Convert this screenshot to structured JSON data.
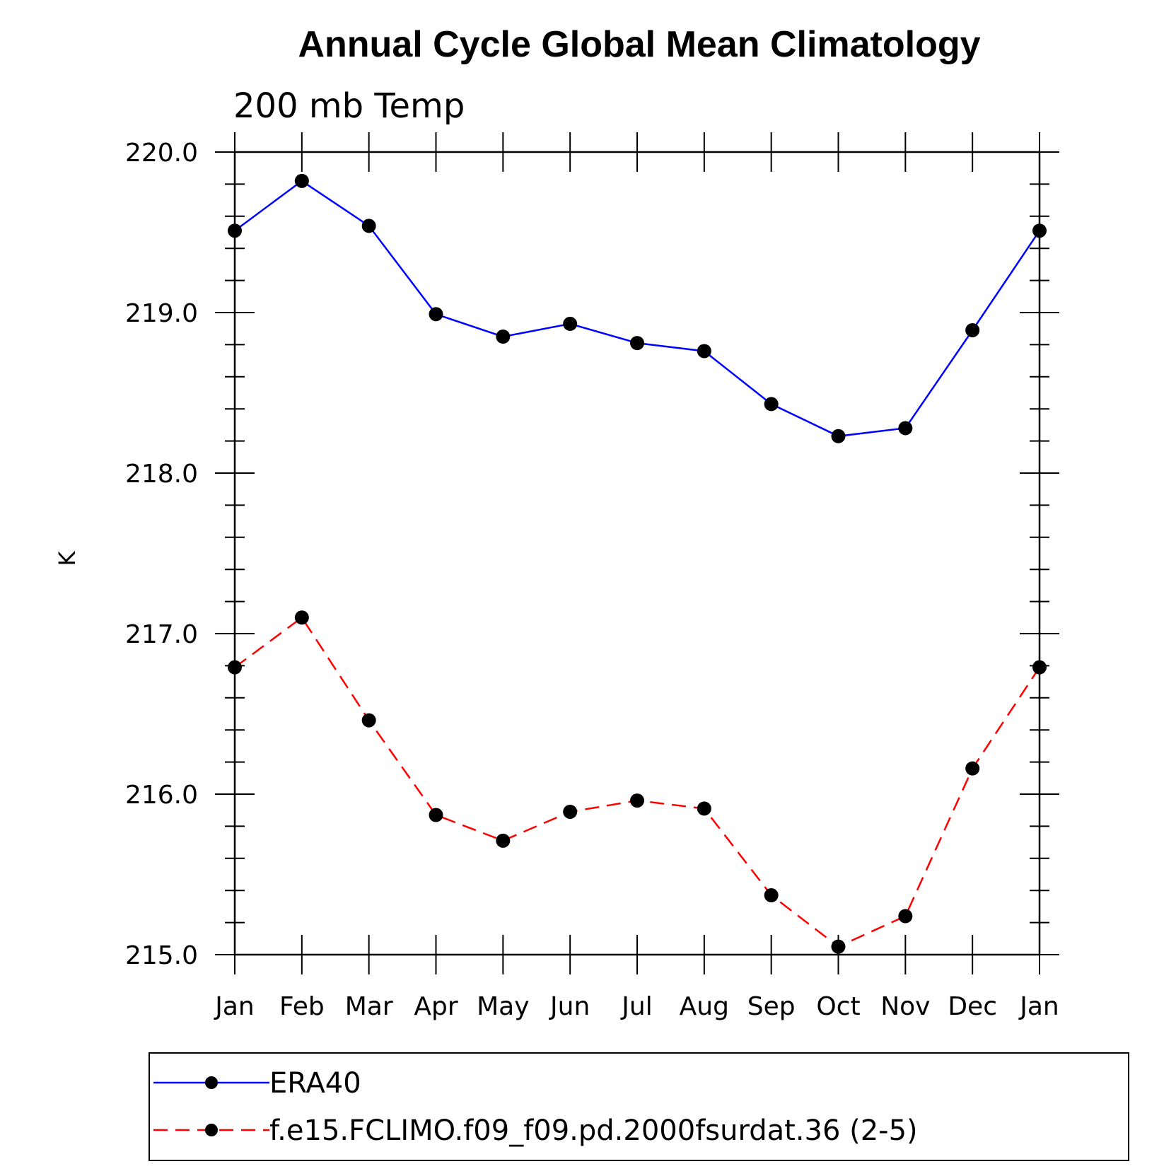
{
  "chart_data": {
    "type": "line",
    "title": "Annual Cycle Global Mean Climatology",
    "subtitle": "200 mb Temp",
    "xlabel": "",
    "ylabel": "K",
    "categories": [
      "Jan",
      "Feb",
      "Mar",
      "Apr",
      "May",
      "Jun",
      "Jul",
      "Aug",
      "Sep",
      "Oct",
      "Nov",
      "Dec",
      "Jan"
    ],
    "ylim": [
      215.0,
      220.0
    ],
    "yticks": [
      "215.0",
      "216.0",
      "217.0",
      "218.0",
      "219.0",
      "220.0"
    ],
    "series": [
      {
        "name": "ERA40",
        "color": "#0000ff",
        "dash": "solid",
        "marker": "filled-circle",
        "values": [
          219.51,
          219.82,
          219.54,
          218.99,
          218.85,
          218.93,
          218.81,
          218.76,
          218.43,
          218.23,
          218.28,
          218.89,
          219.51
        ]
      },
      {
        "name": "f.e15.FCLIMO.f09_f09.pd.2000fsurdat.36 (2-5)",
        "color": "#ff0000",
        "dash": "dashed",
        "marker": "filled-circle",
        "values": [
          216.79,
          217.1,
          216.46,
          215.87,
          215.71,
          215.89,
          215.96,
          215.91,
          215.37,
          215.05,
          215.24,
          216.16,
          216.79
        ]
      }
    ],
    "grid": false,
    "legend_position": "bottom"
  }
}
